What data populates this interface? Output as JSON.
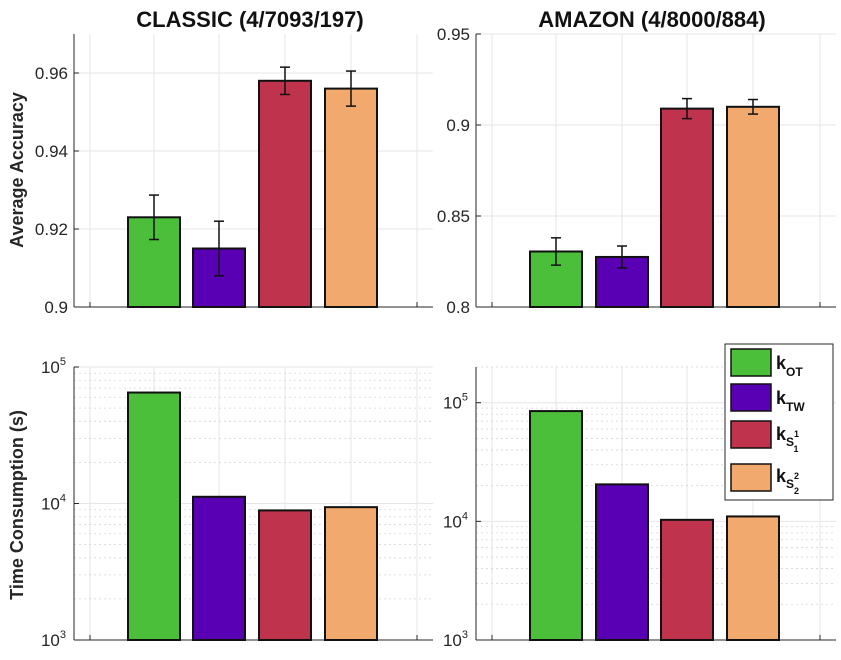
{
  "chart_data": [
    {
      "id": "classic-accuracy",
      "type": "bar",
      "title": "CLASSIC (4/7093/197)",
      "ylabel": "Average Accuracy",
      "xlabel": "",
      "yscale": "linear",
      "ylim": [
        0.9,
        0.97
      ],
      "yticks": [
        0.9,
        0.92,
        0.94,
        0.96
      ],
      "ytick_labels": [
        "0.9",
        "0.92",
        "0.94",
        "0.96"
      ],
      "grid": true,
      "categories": [
        "k_OT",
        "k_TW",
        "k_S1",
        "k_S2"
      ],
      "values": [
        0.923,
        0.915,
        0.958,
        0.956
      ],
      "errors": [
        0.0057,
        0.007,
        0.0035,
        0.0045
      ]
    },
    {
      "id": "amazon-accuracy",
      "type": "bar",
      "title": "AMAZON (4/8000/884)",
      "ylabel": "",
      "xlabel": "",
      "yscale": "linear",
      "ylim": [
        0.8,
        0.95
      ],
      "yticks": [
        0.8,
        0.85,
        0.9,
        0.95
      ],
      "ytick_labels": [
        "0.8",
        "0.85",
        "0.9",
        "0.95"
      ],
      "grid": true,
      "categories": [
        "k_OT",
        "k_TW",
        "k_S1",
        "k_S2"
      ],
      "values": [
        0.8305,
        0.8275,
        0.909,
        0.91
      ],
      "errors": [
        0.0075,
        0.006,
        0.0055,
        0.004
      ]
    },
    {
      "id": "classic-time",
      "type": "bar",
      "title": "",
      "ylabel": "Time Consumption (s)",
      "xlabel": "",
      "yscale": "log",
      "ylim": [
        1000,
        100000
      ],
      "yticks": [
        1000,
        10000,
        100000
      ],
      "ytick_base": "10",
      "ytick_exponents": [
        "3",
        "4",
        "5"
      ],
      "grid": true,
      "categories": [
        "k_OT",
        "k_TW",
        "k_S1",
        "k_S2"
      ],
      "values": [
        65000,
        11200,
        8900,
        9400
      ]
    },
    {
      "id": "amazon-time",
      "type": "bar",
      "title": "",
      "ylabel": "",
      "xlabel": "",
      "yscale": "log",
      "ylim": [
        1000,
        200000
      ],
      "yticks": [
        1000,
        10000,
        100000
      ],
      "ytick_base": "10",
      "ytick_exponents": [
        "3",
        "4",
        "5"
      ],
      "grid": true,
      "categories": [
        "k_OT",
        "k_TW",
        "k_S1",
        "k_S2"
      ],
      "values": [
        85000,
        20500,
        10300,
        11000
      ]
    }
  ],
  "legend": {
    "placement": "top-right of bottom-right panel",
    "items": [
      {
        "base": "k",
        "sub": "OT",
        "sub_sub": "",
        "sup": "",
        "color": "#4bbf3a"
      },
      {
        "base": "k",
        "sub": "TW",
        "sub_sub": "",
        "sup": "",
        "color": "#5a00b4"
      },
      {
        "base": "k",
        "sub": "S",
        "sub_sub": "1",
        "sup": "1",
        "color": "#c0334d"
      },
      {
        "base": "k",
        "sub": "S",
        "sub_sub": "2",
        "sup": "2",
        "color": "#f2a96e"
      }
    ]
  },
  "colors": {
    "bars": [
      "#4bbf3a",
      "#5a00b4",
      "#c0334d",
      "#f2a96e"
    ],
    "grid": "#e6e6e6",
    "minor_grid": "#d4d4d4",
    "axis": "#262626"
  }
}
